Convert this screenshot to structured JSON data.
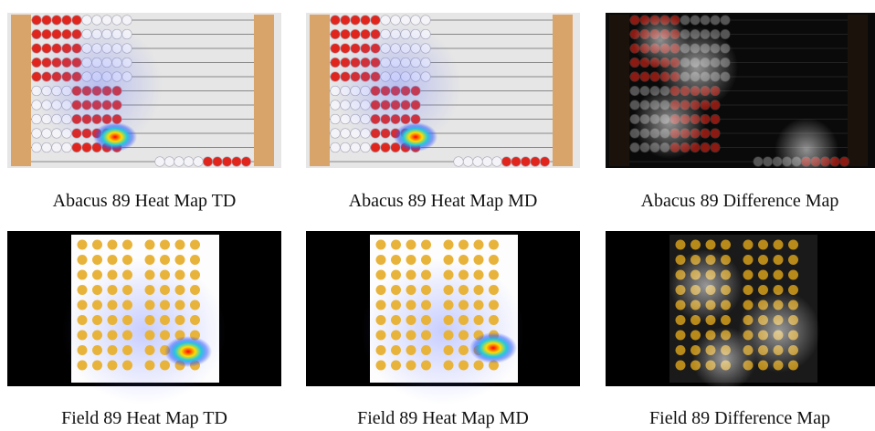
{
  "figures": [
    {
      "caption": "Abacus 89 Heat Map TD"
    },
    {
      "caption": "Abacus 89 Heat Map MD"
    },
    {
      "caption": "Abacus 89 Difference Map"
    },
    {
      "caption": "Field 89 Heat Map TD"
    },
    {
      "caption": "Field 89 Heat Map MD"
    },
    {
      "caption": "Field 89 Difference Map"
    }
  ]
}
